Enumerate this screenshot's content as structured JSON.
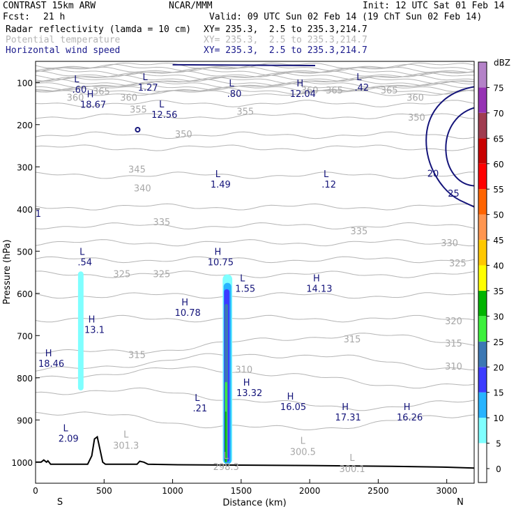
{
  "header": {
    "model": "CONTRAST 15km ARW",
    "center": "NCAR/MMM",
    "init": "Init: 12 UTC Sat 01 Feb 14",
    "fcst_label": "Fcst:",
    "fcst_value": "21 h",
    "valid": "Valid: 09 UTC Sun 02 Feb 14 (19 ChT Sun 02 Feb 14)",
    "fields": [
      {
        "name": "Radar reflectivity (lamda = 10 cm)",
        "xy": "XY= 235.3,  2.5 to 235.3,214.7",
        "color": "#000000"
      },
      {
        "name": "Potential temperature",
        "xy": "XY= 235.3,  2.5 to 235.3,214.7",
        "color": "#b4b4b4"
      },
      {
        "name": "Horizontal wind speed",
        "xy": "XY= 235.3,  2.5 to 235.3,214.7",
        "color": "#1a1a8c"
      }
    ]
  },
  "chart_data": {
    "type": "cross-section",
    "title": "Radar reflectivity, potential temperature, horizontal wind speed",
    "xlabel": "Distance (km)",
    "ylabel": "Pressure (hPa)",
    "xlim": [
      0,
      3200
    ],
    "ylim": [
      1050,
      50
    ],
    "x_ticks": [
      0,
      500,
      1000,
      1500,
      2000,
      2500,
      3000
    ],
    "y_ticks": [
      100,
      200,
      300,
      400,
      500,
      600,
      700,
      800,
      900,
      1000
    ],
    "x_end_labels": {
      "left": "S",
      "right": "N"
    },
    "colorbar": {
      "unit": "dBZ",
      "levels": [
        0,
        5,
        10,
        15,
        20,
        25,
        30,
        35,
        40,
        45,
        50,
        55,
        60,
        65,
        70,
        75
      ],
      "colors": [
        "#ffffff",
        "#7fffff",
        "#28b4ff",
        "#3c3cff",
        "#3c78b4",
        "#3cf03c",
        "#00b400",
        "#ffff00",
        "#ffc800",
        "#ff9650",
        "#ff6400",
        "#ff0000",
        "#c80000",
        "#a03c50",
        "#9632b4",
        "#b482c8"
      ]
    },
    "theta_labels": [
      {
        "x": 480,
        "p": 120,
        "v": "365"
      },
      {
        "x": 290,
        "p": 135,
        "v": "360"
      },
      {
        "x": 680,
        "p": 135,
        "v": "360"
      },
      {
        "x": 2180,
        "p": 118,
        "v": "365"
      },
      {
        "x": 2580,
        "p": 118,
        "v": "365"
      },
      {
        "x": 2770,
        "p": 135,
        "v": "360"
      },
      {
        "x": 2000,
        "p": 118,
        "v": "360"
      },
      {
        "x": 3180,
        "p": 150,
        "v": "355"
      },
      {
        "x": 2780,
        "p": 182,
        "v": "350"
      },
      {
        "x": 3180,
        "p": 230,
        "v": "345"
      },
      {
        "x": 750,
        "p": 163,
        "v": "355"
      },
      {
        "x": 1530,
        "p": 168,
        "v": "355"
      },
      {
        "x": 1080,
        "p": 222,
        "v": "350"
      },
      {
        "x": 740,
        "p": 305,
        "v": "345"
      },
      {
        "x": 780,
        "p": 350,
        "v": "340"
      },
      {
        "x": 920,
        "p": 430,
        "v": "335"
      },
      {
        "x": 2360,
        "p": 452,
        "v": "335"
      },
      {
        "x": 3020,
        "p": 480,
        "v": "330"
      },
      {
        "x": 3080,
        "p": 528,
        "v": "325"
      },
      {
        "x": 630,
        "p": 553,
        "v": "325"
      },
      {
        "x": 920,
        "p": 553,
        "v": "325"
      },
      {
        "x": 3050,
        "p": 665,
        "v": "320"
      },
      {
        "x": 2310,
        "p": 708,
        "v": "315"
      },
      {
        "x": 3050,
        "p": 718,
        "v": "315"
      },
      {
        "x": 740,
        "p": 745,
        "v": "315"
      },
      {
        "x": 3050,
        "p": 772,
        "v": "310"
      },
      {
        "x": 1520,
        "p": 780,
        "v": "310"
      }
    ],
    "theta_surface_minima": [
      {
        "x": 660,
        "p": 965,
        "v": "301.3"
      },
      {
        "x": 1390,
        "p": 1015,
        "v": "298.3"
      },
      {
        "x": 1950,
        "p": 980,
        "v": "300.5"
      },
      {
        "x": 2310,
        "p": 1020,
        "v": "300.1"
      }
    ],
    "wind_extrema": [
      {
        "x": 320,
        "p": 113,
        "kind": "L",
        "v": ".60"
      },
      {
        "x": 820,
        "p": 108,
        "kind": "L",
        "v": "1.27"
      },
      {
        "x": 1450,
        "p": 123,
        "kind": "L",
        "v": ".80"
      },
      {
        "x": 2380,
        "p": 108,
        "kind": "L",
        "v": ".42"
      },
      {
        "x": 420,
        "p": 148,
        "kind": "H",
        "v": "18.67"
      },
      {
        "x": 1950,
        "p": 123,
        "kind": "H",
        "v": "12.04"
      },
      {
        "x": 940,
        "p": 172,
        "kind": "L",
        "v": "12.56"
      },
      {
        "x": 1350,
        "p": 338,
        "kind": "L",
        "v": "1.49"
      },
      {
        "x": 2140,
        "p": 338,
        "kind": "L",
        "v": ".12"
      },
      {
        "x": 360,
        "p": 522,
        "kind": "L",
        "v": ".54"
      },
      {
        "x": 1350,
        "p": 522,
        "kind": "H",
        "v": "10.75"
      },
      {
        "x": 1530,
        "p": 585,
        "kind": "L",
        "v": "1.55"
      },
      {
        "x": 2070,
        "p": 585,
        "kind": "H",
        "v": "14.13"
      },
      {
        "x": 1110,
        "p": 642,
        "kind": "H",
        "v": "10.78"
      },
      {
        "x": 430,
        "p": 682,
        "kind": "H",
        "v": "13.1"
      },
      {
        "x": 115,
        "p": 762,
        "kind": "H",
        "v": "18.46"
      },
      {
        "x": 1560,
        "p": 832,
        "kind": "H",
        "v": "13.32"
      },
      {
        "x": 1200,
        "p": 868,
        "kind": "L",
        "v": ".21"
      },
      {
        "x": 1880,
        "p": 865,
        "kind": "H",
        "v": "16.05"
      },
      {
        "x": 2280,
        "p": 890,
        "kind": "H",
        "v": "17.31"
      },
      {
        "x": 2730,
        "p": 890,
        "kind": "H",
        "v": "16.26"
      },
      {
        "x": 240,
        "p": 940,
        "kind": "L",
        "v": "2.09"
      }
    ],
    "wind_contour_labels": [
      {
        "x": 2900,
        "p": 315,
        "v": "20"
      },
      {
        "x": 3050,
        "p": 362,
        "v": "25"
      },
      {
        "x": 20,
        "p": 410,
        "v": "1"
      }
    ]
  }
}
